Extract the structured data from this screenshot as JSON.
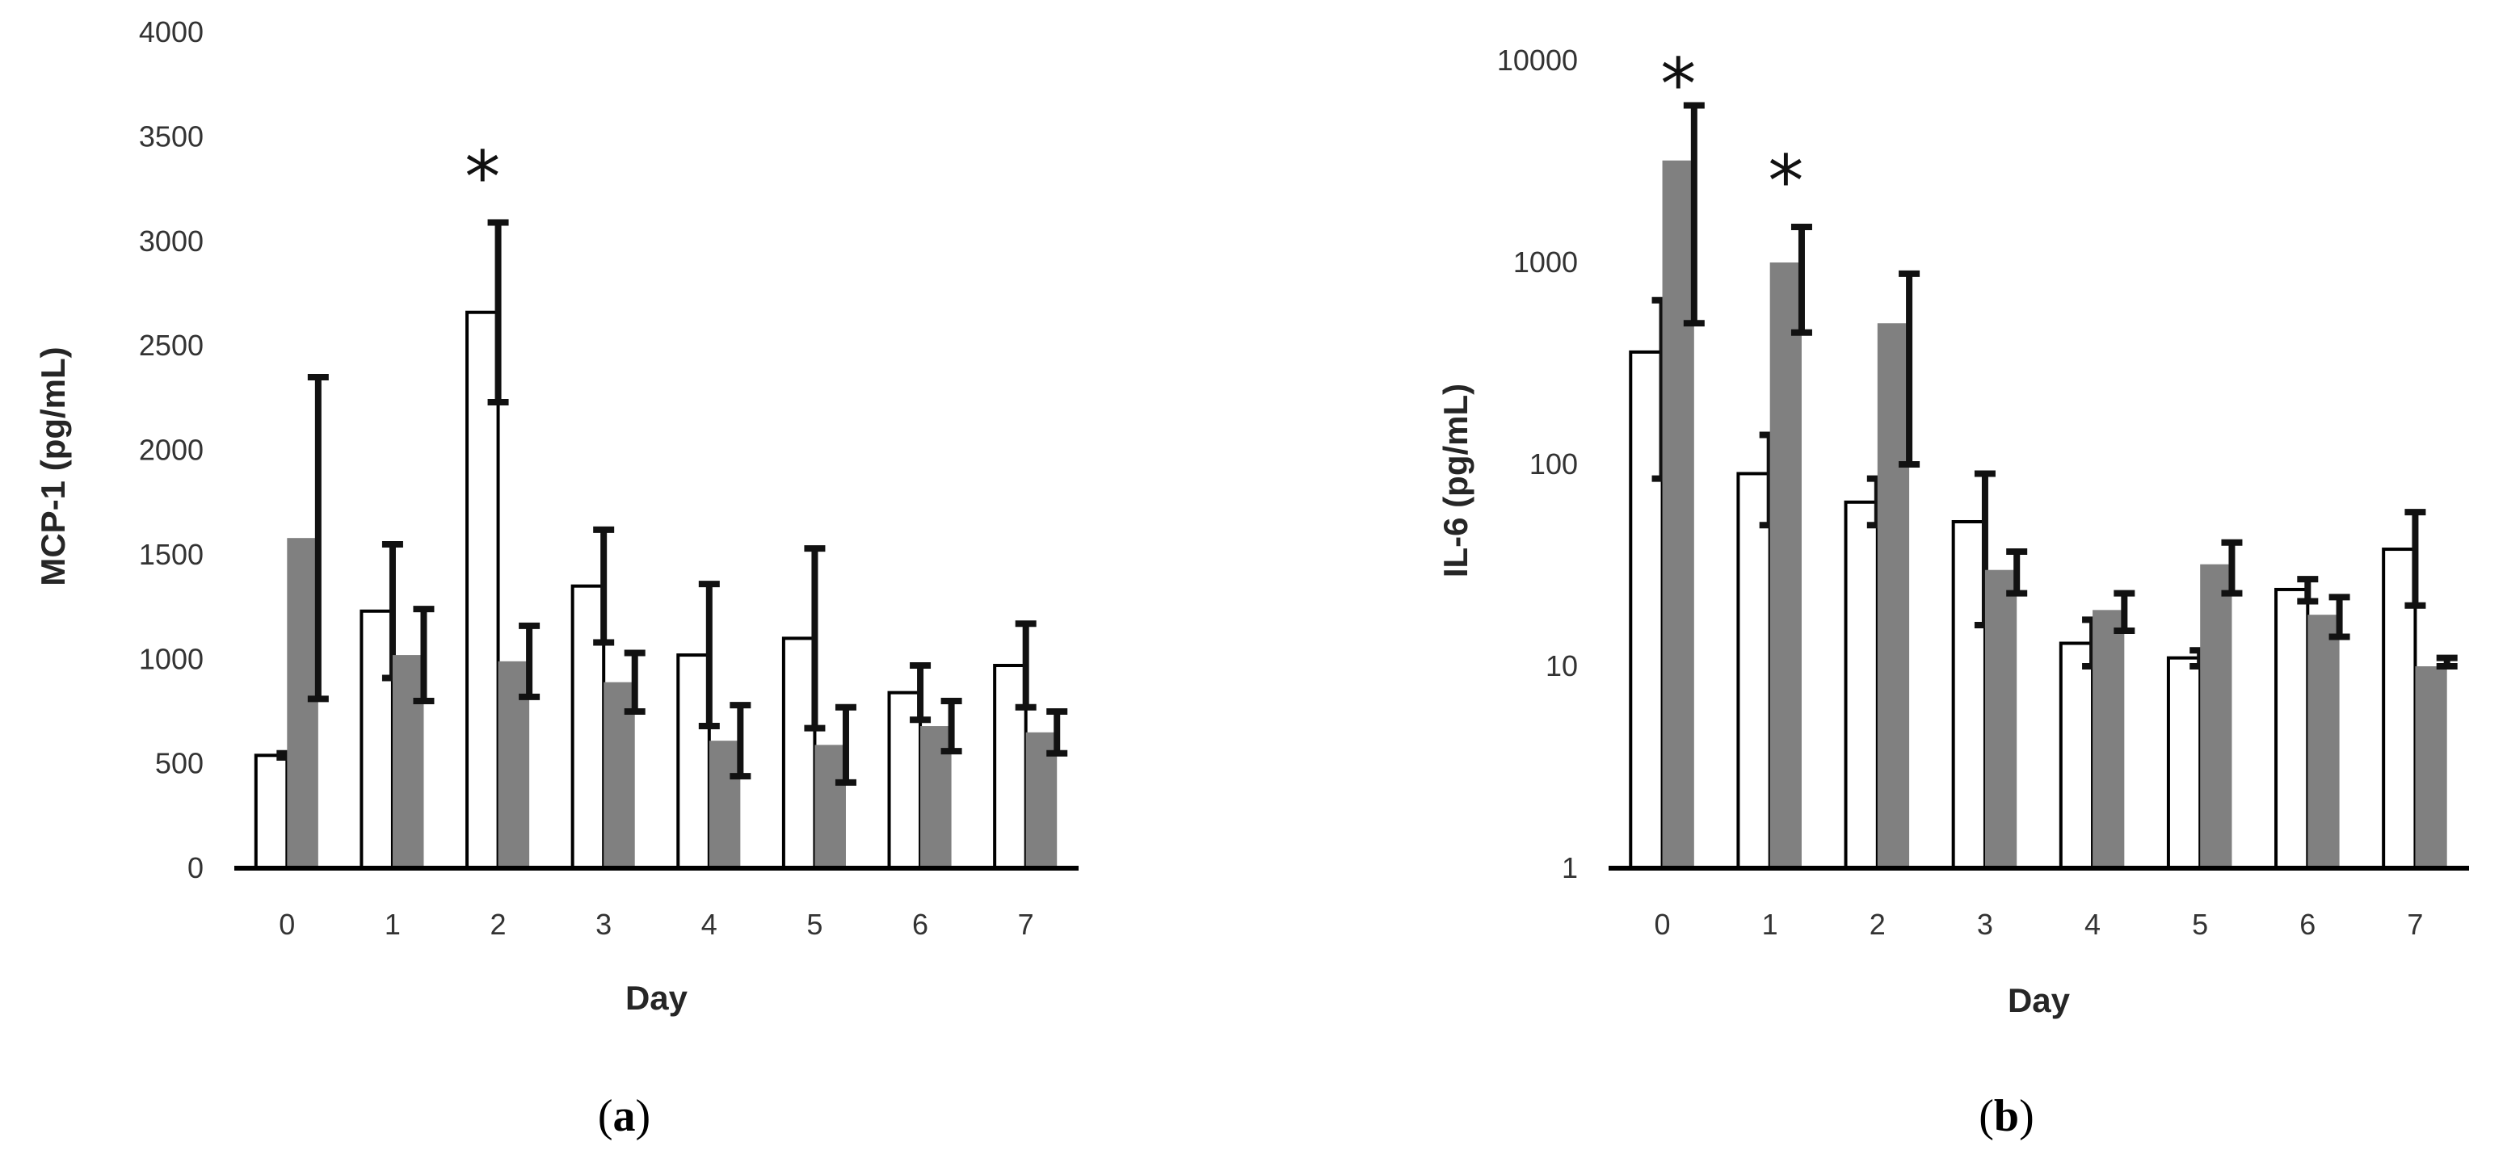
{
  "chart_data": [
    {
      "type": "bar",
      "panel_label": "a",
      "categories": [
        "0",
        "1",
        "2",
        "3",
        "4",
        "5",
        "6",
        "7"
      ],
      "xlabel": "Day",
      "ylabel": "MCP-1 (pg/mL)",
      "ylim": [
        0,
        4000
      ],
      "yscale": "linear",
      "yticks": [
        "0",
        "500",
        "1000",
        "1500",
        "2000",
        "2500",
        "3000",
        "3500",
        "4000"
      ],
      "grid": false,
      "legend": "none",
      "series": [
        {
          "fill": "#ffffff",
          "values": [
            540,
            1230,
            2660,
            1350,
            1020,
            1100,
            840,
            970
          ],
          "error": [
            10,
            320,
            430,
            270,
            340,
            430,
            130,
            200
          ]
        },
        {
          "fill": "#808080",
          "values": [
            1580,
            1020,
            990,
            890,
            610,
            590,
            680,
            650
          ],
          "error": [
            770,
            220,
            170,
            140,
            170,
            180,
            120,
            100
          ]
        }
      ],
      "annotations": [
        {
          "text": "*",
          "category": "2"
        }
      ]
    },
    {
      "type": "bar",
      "panel_label": "b",
      "categories": [
        "0",
        "1",
        "2",
        "3",
        "4",
        "5",
        "6",
        "7"
      ],
      "xlabel": "Day",
      "ylabel": "IL-6 (pg/mL)",
      "ylim": [
        1,
        10000
      ],
      "yscale": "log",
      "yticks": [
        "1",
        "10",
        "100",
        "1000",
        "10000"
      ],
      "grid": false,
      "legend": "none",
      "series": [
        {
          "fill": "#ffffff",
          "values": [
            360,
            90,
            65,
            52,
            13,
            11,
            24,
            38
          ],
          "error_low": [
            85,
            50,
            50,
            16,
            10,
            10,
            21,
            20
          ],
          "error_high": [
            650,
            140,
            85,
            90,
            17,
            12,
            27,
            58
          ]
        },
        {
          "fill": "#808080",
          "values": [
            3200,
            1000,
            500,
            30,
            19,
            32,
            18,
            10
          ],
          "error_low": [
            500,
            450,
            100,
            23,
            15,
            23,
            14,
            10
          ],
          "error_high": [
            6000,
            1500,
            880,
            37,
            23,
            41,
            22,
            11
          ]
        }
      ],
      "annotations": [
        {
          "text": "*",
          "category": "0"
        },
        {
          "text": "*",
          "category": "1"
        }
      ]
    }
  ]
}
